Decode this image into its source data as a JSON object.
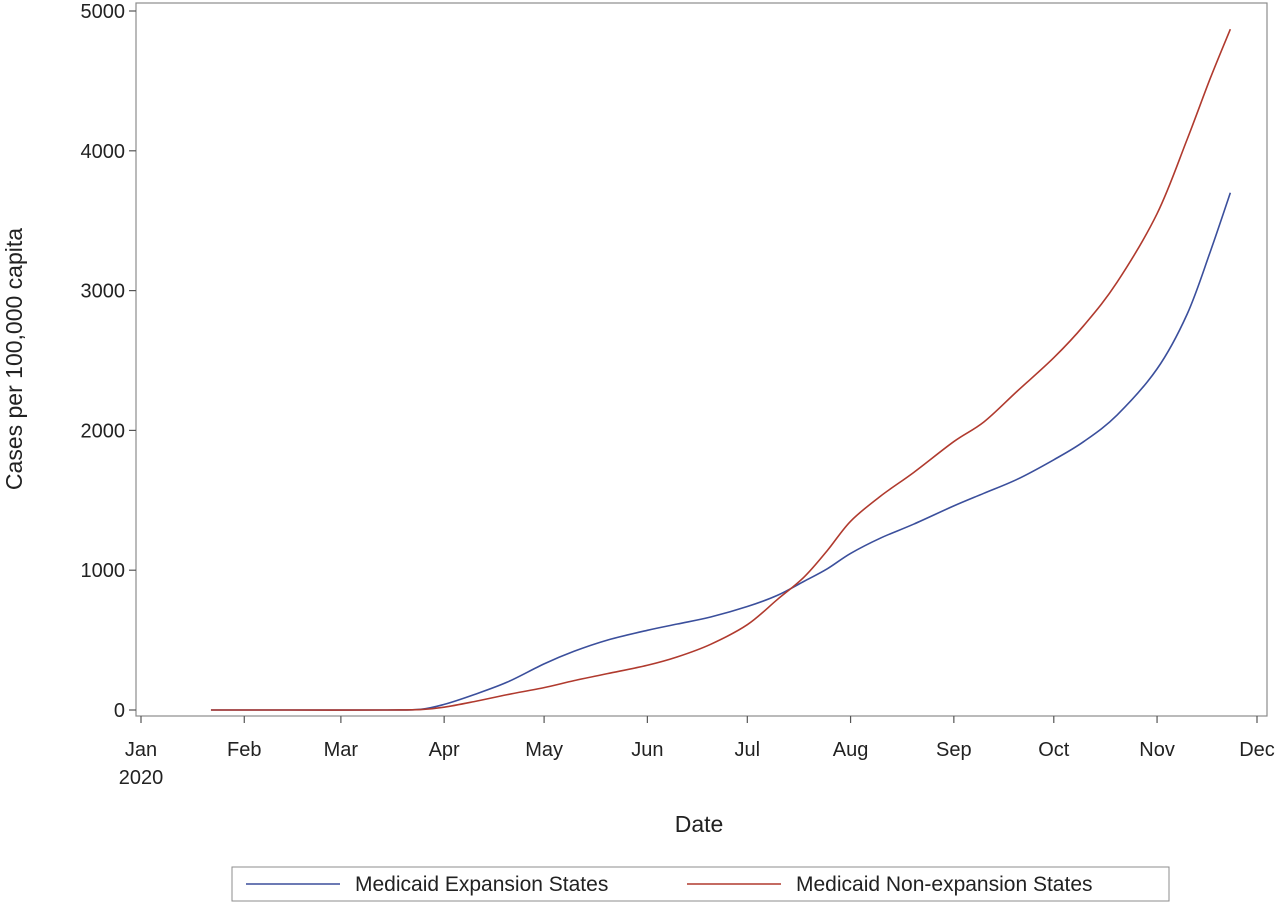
{
  "chart_data": {
    "type": "line",
    "xlabel": "Date",
    "ylabel": "Cases per 100,000 capita",
    "x_axis": {
      "type": "date",
      "range": [
        "2020-01-01",
        "2020-12-01"
      ],
      "ticks": [
        {
          "date": "2020-01-01",
          "label": "Jan",
          "sublabel": "2020"
        },
        {
          "date": "2020-02-01",
          "label": "Feb",
          "sublabel": ""
        },
        {
          "date": "2020-03-01",
          "label": "Mar",
          "sublabel": ""
        },
        {
          "date": "2020-04-01",
          "label": "Apr",
          "sublabel": ""
        },
        {
          "date": "2020-05-01",
          "label": "May",
          "sublabel": ""
        },
        {
          "date": "2020-06-01",
          "label": "Jun",
          "sublabel": ""
        },
        {
          "date": "2020-07-01",
          "label": "Jul",
          "sublabel": ""
        },
        {
          "date": "2020-08-01",
          "label": "Aug",
          "sublabel": ""
        },
        {
          "date": "2020-09-01",
          "label": "Sep",
          "sublabel": ""
        },
        {
          "date": "2020-10-01",
          "label": "Oct",
          "sublabel": ""
        },
        {
          "date": "2020-11-01",
          "label": "Nov",
          "sublabel": ""
        },
        {
          "date": "2020-12-01",
          "label": "Dec",
          "sublabel": ""
        }
      ]
    },
    "y_axis": {
      "range": [
        0,
        5000
      ],
      "ticks": [
        0,
        1000,
        2000,
        3000,
        4000,
        5000
      ]
    },
    "grid": false,
    "legend": {
      "position": "bottom",
      "frame": true
    },
    "series": [
      {
        "name": "Medicaid Expansion States",
        "color": "#3b4f9c",
        "points": [
          [
            "2020-01-22",
            0
          ],
          [
            "2020-02-15",
            0
          ],
          [
            "2020-03-15",
            0
          ],
          [
            "2020-03-25",
            5
          ],
          [
            "2020-04-01",
            40
          ],
          [
            "2020-04-10",
            110
          ],
          [
            "2020-04-20",
            200
          ],
          [
            "2020-05-01",
            330
          ],
          [
            "2020-05-10",
            420
          ],
          [
            "2020-05-20",
            500
          ],
          [
            "2020-06-01",
            570
          ],
          [
            "2020-06-10",
            615
          ],
          [
            "2020-06-20",
            665
          ],
          [
            "2020-07-01",
            740
          ],
          [
            "2020-07-10",
            820
          ],
          [
            "2020-07-18",
            920
          ],
          [
            "2020-07-25",
            1010
          ],
          [
            "2020-08-01",
            1120
          ],
          [
            "2020-08-10",
            1230
          ],
          [
            "2020-08-20",
            1330
          ],
          [
            "2020-09-01",
            1460
          ],
          [
            "2020-09-10",
            1550
          ],
          [
            "2020-09-20",
            1650
          ],
          [
            "2020-10-01",
            1790
          ],
          [
            "2020-10-10",
            1920
          ],
          [
            "2020-10-20",
            2110
          ],
          [
            "2020-11-01",
            2440
          ],
          [
            "2020-11-10",
            2830
          ],
          [
            "2020-11-17",
            3280
          ],
          [
            "2020-11-23",
            3700
          ]
        ]
      },
      {
        "name": "Medicaid Non-expansion States",
        "color": "#b03a2e",
        "points": [
          [
            "2020-01-22",
            0
          ],
          [
            "2020-02-15",
            0
          ],
          [
            "2020-03-15",
            0
          ],
          [
            "2020-03-25",
            3
          ],
          [
            "2020-04-01",
            20
          ],
          [
            "2020-04-10",
            60
          ],
          [
            "2020-04-20",
            110
          ],
          [
            "2020-05-01",
            160
          ],
          [
            "2020-05-10",
            210
          ],
          [
            "2020-05-20",
            260
          ],
          [
            "2020-06-01",
            320
          ],
          [
            "2020-06-10",
            380
          ],
          [
            "2020-06-20",
            470
          ],
          [
            "2020-07-01",
            610
          ],
          [
            "2020-07-10",
            790
          ],
          [
            "2020-07-18",
            950
          ],
          [
            "2020-07-25",
            1140
          ],
          [
            "2020-08-01",
            1350
          ],
          [
            "2020-08-10",
            1530
          ],
          [
            "2020-08-20",
            1700
          ],
          [
            "2020-09-01",
            1920
          ],
          [
            "2020-09-10",
            2060
          ],
          [
            "2020-09-20",
            2280
          ],
          [
            "2020-10-01",
            2520
          ],
          [
            "2020-10-10",
            2750
          ],
          [
            "2020-10-20",
            3060
          ],
          [
            "2020-11-01",
            3550
          ],
          [
            "2020-11-10",
            4080
          ],
          [
            "2020-11-17",
            4520
          ],
          [
            "2020-11-23",
            4870
          ]
        ]
      }
    ]
  }
}
